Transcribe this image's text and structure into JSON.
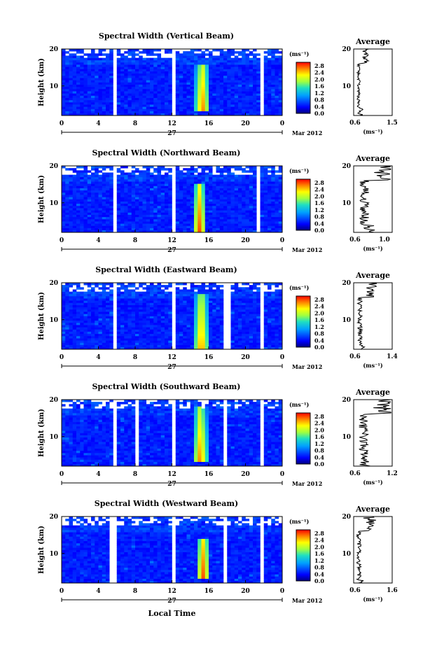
{
  "figure": {
    "xlabel": "Local Time",
    "date_label": "Mar 2012",
    "day_label": "27",
    "x_ticks": [
      "0",
      "4",
      "8",
      "12",
      "16",
      "20",
      "0"
    ],
    "y_ticks": [
      "10",
      "20"
    ],
    "ylabel": "Height (km)",
    "colorbar_unit": "(ms⁻¹)",
    "colorbar_ticks": [
      "0.0",
      "0.4",
      "0.8",
      "1.2",
      "1.6",
      "2.0",
      "2.4",
      "2.8"
    ],
    "avg_title": "Average",
    "avg_unit": "(ms⁻¹)"
  },
  "chart_data": [
    {
      "type": "heatmap",
      "title": "Spectral Width (Vertical Beam)",
      "xlabel": "Local Time",
      "ylabel": "Height (km)",
      "x_range_hours": [
        0,
        24
      ],
      "y_range_km": [
        2,
        20
      ],
      "color_range": [
        0.0,
        3.0
      ],
      "data_gaps_hours": [
        [
          5.5,
          6.0
        ],
        [
          11.8,
          12.3
        ],
        [
          21.6,
          22.0
        ]
      ],
      "enhancement": {
        "center_hour": 15.3,
        "height_km": [
          3,
          16
        ],
        "max_value": 2.8
      },
      "average_profile": {
        "xlim": [
          0.6,
          1.5
        ],
        "x_ticks": [
          "0.6",
          "1.5"
        ],
        "y_ticks": [
          "10",
          "20"
        ],
        "value_range": [
          0.6,
          0.9
        ]
      }
    },
    {
      "type": "heatmap",
      "title": "Spectral Width (Northward Beam)",
      "xlabel": "Local Time",
      "ylabel": "Height (km)",
      "x_range_hours": [
        0,
        24
      ],
      "y_range_km": [
        2,
        20
      ],
      "color_range": [
        0.0,
        3.0
      ],
      "data_gaps_hours": [
        [
          5.5,
          5.9
        ],
        [
          11.8,
          12.2
        ],
        [
          21.3,
          21.7
        ]
      ],
      "enhancement": {
        "center_hour": 15.0,
        "height_km": [
          2,
          15
        ],
        "max_value": 2.8
      },
      "average_profile": {
        "xlim": [
          0.6,
          1.1
        ],
        "x_ticks": [
          "0.6",
          "1.0"
        ],
        "y_ticks": [
          "10",
          "20"
        ],
        "value_range": [
          0.6,
          1.1
        ]
      }
    },
    {
      "type": "heatmap",
      "title": "Spectral Width (Eastward Beam)",
      "xlabel": "Local Time",
      "ylabel": "Height (km)",
      "x_range_hours": [
        0,
        24
      ],
      "y_range_km": [
        2,
        20
      ],
      "color_range": [
        0.0,
        3.0
      ],
      "data_gaps_hours": [
        [
          5.5,
          5.9
        ],
        [
          11.8,
          12.3
        ],
        [
          17.8,
          18.3
        ],
        [
          21.8,
          22.2
        ]
      ],
      "enhancement": {
        "center_hour": 15.2,
        "height_km": [
          2,
          17
        ],
        "max_value": 2.8
      },
      "average_profile": {
        "xlim": [
          0.6,
          1.4
        ],
        "x_ticks": [
          "0.6",
          "1.4"
        ],
        "y_ticks": [
          "10",
          "20"
        ],
        "value_range": [
          0.6,
          1.0
        ]
      }
    },
    {
      "type": "heatmap",
      "title": "Spectral Width (Southward Beam)",
      "xlabel": "Local Time",
      "ylabel": "Height (km)",
      "x_range_hours": [
        0,
        24
      ],
      "y_range_km": [
        2,
        20
      ],
      "color_range": [
        0.0,
        3.0
      ],
      "data_gaps_hours": [
        [
          5.5,
          5.9
        ],
        [
          8.0,
          8.3
        ],
        [
          11.8,
          12.3
        ],
        [
          17.6,
          18.1
        ],
        [
          21.5,
          22.0
        ]
      ],
      "enhancement": {
        "center_hour": 15.1,
        "height_km": [
          3,
          18
        ],
        "max_value": 2.8
      },
      "average_profile": {
        "xlim": [
          0.6,
          1.2
        ],
        "x_ticks": [
          "0.6",
          "1.2"
        ],
        "y_ticks": [
          "10",
          "20"
        ],
        "value_range": [
          0.6,
          1.2
        ]
      }
    },
    {
      "type": "heatmap",
      "title": "Spectral Width (Westward Beam)",
      "xlabel": "Local Time",
      "ylabel": "Height (km)",
      "x_range_hours": [
        0,
        24
      ],
      "y_range_km": [
        2,
        20
      ],
      "color_range": [
        0.0,
        3.0
      ],
      "data_gaps_hours": [
        [
          5.4,
          5.9
        ],
        [
          11.8,
          12.3
        ],
        [
          17.5,
          18.0
        ],
        [
          21.8,
          22.2
        ]
      ],
      "enhancement": {
        "center_hour": 15.4,
        "height_km": [
          3,
          14
        ],
        "max_value": 2.8
      },
      "average_profile": {
        "xlim": [
          0.6,
          1.6
        ],
        "x_ticks": [
          "0.6",
          "1.6"
        ],
        "y_ticks": [
          "10",
          "20"
        ],
        "value_range": [
          0.6,
          1.1
        ]
      }
    }
  ]
}
